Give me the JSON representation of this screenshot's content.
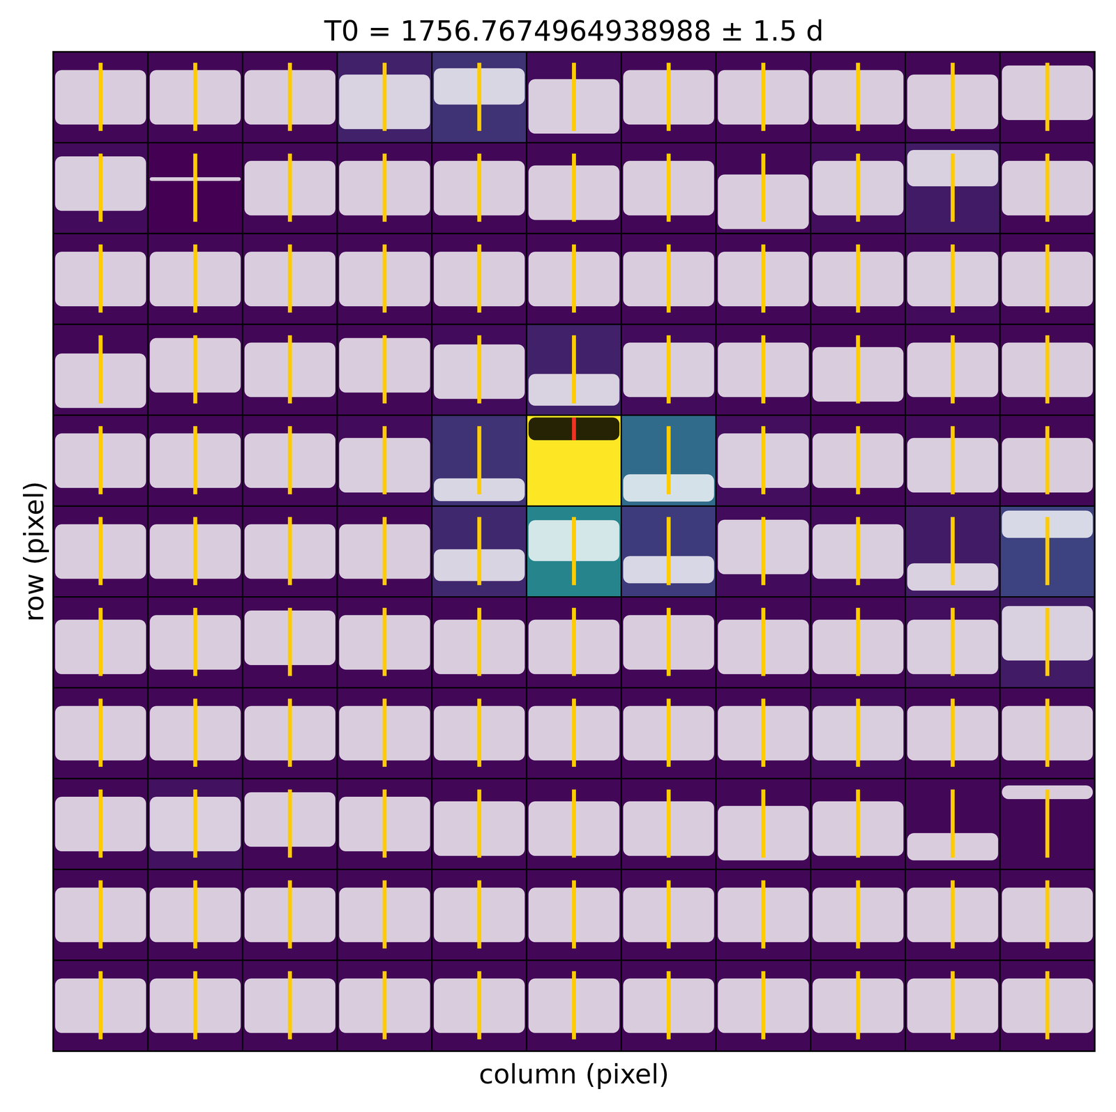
{
  "chart_data": {
    "type": "heatmap",
    "title": "T0 = 1756.7674964938988 ± 1.5 d",
    "x_label": "column (pixel)",
    "y_label": "row (pixel)",
    "tick_labels": false,
    "xlim": [
      1755.2674964938988,
      1758.2674964938988
    ],
    "transit_time": 1756.7674964938988,
    "cells": [
      [
        0.02,
        0.02,
        0.02,
        0.1,
        0.15,
        0.03,
        0.02,
        0.02,
        0.02,
        0.02,
        0.02
      ],
      [
        0.03,
        0.0,
        0.02,
        0.02,
        0.02,
        0.02,
        0.02,
        0.02,
        0.04,
        0.08,
        0.02
      ],
      [
        0.02,
        0.02,
        0.02,
        0.02,
        0.02,
        0.02,
        0.02,
        0.02,
        0.02,
        0.03,
        0.02
      ],
      [
        0.02,
        0.02,
        0.02,
        0.02,
        0.03,
        0.1,
        0.03,
        0.02,
        0.02,
        0.02,
        0.02
      ],
      [
        0.02,
        0.02,
        0.02,
        0.03,
        0.15,
        1.0,
        0.35,
        0.04,
        0.02,
        0.03,
        0.02
      ],
      [
        0.02,
        0.02,
        0.02,
        0.02,
        0.12,
        0.45,
        0.18,
        0.03,
        0.03,
        0.08,
        0.2
      ],
      [
        0.02,
        0.02,
        0.02,
        0.02,
        0.02,
        0.02,
        0.02,
        0.02,
        0.02,
        0.04,
        0.08
      ],
      [
        0.02,
        0.02,
        0.02,
        0.02,
        0.02,
        0.02,
        0.02,
        0.02,
        0.03,
        0.02,
        0.02
      ],
      [
        0.02,
        0.05,
        0.02,
        0.02,
        0.02,
        0.02,
        0.02,
        0.02,
        0.02,
        0.02,
        0.02
      ],
      [
        0.02,
        0.02,
        0.02,
        0.02,
        0.02,
        0.02,
        0.02,
        0.02,
        0.02,
        0.02,
        0.02
      ],
      [
        0.02,
        0.02,
        0.02,
        0.02,
        0.02,
        0.02,
        0.02,
        0.02,
        0.02,
        0.02,
        0.02
      ]
    ],
    "curve_level": [
      [
        0.5,
        0.5,
        0.5,
        0.45,
        0.62,
        0.4,
        0.5,
        0.5,
        0.5,
        0.45,
        0.55
      ],
      [
        0.55,
        0.6,
        0.5,
        0.5,
        0.5,
        0.45,
        0.5,
        0.35,
        0.5,
        0.72,
        0.5
      ],
      [
        0.5,
        0.5,
        0.5,
        0.5,
        0.5,
        0.5,
        0.5,
        0.5,
        0.5,
        0.5,
        0.5
      ],
      [
        0.38,
        0.55,
        0.5,
        0.55,
        0.48,
        0.28,
        0.5,
        0.5,
        0.45,
        0.5,
        0.5
      ],
      [
        0.5,
        0.5,
        0.5,
        0.45,
        0.18,
        0.85,
        0.2,
        0.5,
        0.5,
        0.45,
        0.45
      ],
      [
        0.5,
        0.5,
        0.5,
        0.5,
        0.35,
        0.62,
        0.3,
        0.55,
        0.5,
        0.22,
        0.8
      ],
      [
        0.45,
        0.5,
        0.55,
        0.5,
        0.45,
        0.45,
        0.5,
        0.45,
        0.45,
        0.45,
        0.6
      ],
      [
        0.5,
        0.5,
        0.5,
        0.5,
        0.5,
        0.5,
        0.5,
        0.5,
        0.5,
        0.5,
        0.5
      ],
      [
        0.5,
        0.5,
        0.55,
        0.5,
        0.45,
        0.45,
        0.45,
        0.4,
        0.45,
        0.25,
        0.85
      ],
      [
        0.5,
        0.5,
        0.5,
        0.5,
        0.5,
        0.5,
        0.5,
        0.5,
        0.5,
        0.5,
        0.5
      ],
      [
        0.5,
        0.5,
        0.5,
        0.5,
        0.5,
        0.5,
        0.5,
        0.5,
        0.5,
        0.5,
        0.5
      ]
    ],
    "curve_spread": [
      [
        0.6,
        0.6,
        0.6,
        0.6,
        0.4,
        0.6,
        0.6,
        0.6,
        0.6,
        0.6,
        0.6
      ],
      [
        0.6,
        0.04,
        0.6,
        0.6,
        0.6,
        0.6,
        0.6,
        0.6,
        0.6,
        0.4,
        0.6
      ],
      [
        0.6,
        0.6,
        0.6,
        0.6,
        0.6,
        0.6,
        0.6,
        0.6,
        0.6,
        0.6,
        0.6
      ],
      [
        0.6,
        0.6,
        0.6,
        0.6,
        0.6,
        0.35,
        0.6,
        0.6,
        0.6,
        0.6,
        0.6
      ],
      [
        0.6,
        0.6,
        0.6,
        0.6,
        0.25,
        0.25,
        0.3,
        0.6,
        0.6,
        0.6,
        0.6
      ],
      [
        0.6,
        0.6,
        0.6,
        0.6,
        0.35,
        0.45,
        0.3,
        0.6,
        0.6,
        0.3,
        0.3
      ],
      [
        0.6,
        0.6,
        0.6,
        0.6,
        0.6,
        0.6,
        0.6,
        0.6,
        0.6,
        0.6,
        0.6
      ],
      [
        0.6,
        0.6,
        0.6,
        0.6,
        0.6,
        0.6,
        0.6,
        0.6,
        0.6,
        0.6,
        0.6
      ],
      [
        0.6,
        0.6,
        0.6,
        0.6,
        0.6,
        0.6,
        0.6,
        0.6,
        0.6,
        0.3,
        0.15
      ],
      [
        0.6,
        0.6,
        0.6,
        0.6,
        0.6,
        0.6,
        0.6,
        0.6,
        0.6,
        0.6,
        0.6
      ],
      [
        0.6,
        0.6,
        0.6,
        0.6,
        0.6,
        0.6,
        0.6,
        0.6,
        0.6,
        0.6,
        0.6
      ]
    ]
  }
}
